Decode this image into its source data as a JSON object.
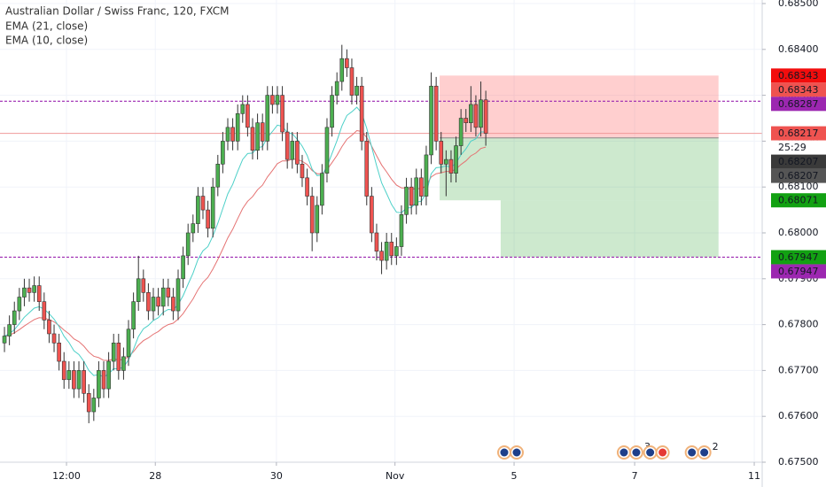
{
  "chart_data": {
    "type": "candlestick",
    "title": "Australian Dollar / Swiss Franc, 120, FXCM",
    "xlim": [
      -0.9,
      152.7
    ],
    "ylim": [
      0.675,
      0.685
    ],
    "yticks": [
      {
        "value": 0.685,
        "label": "0.68500"
      },
      {
        "value": 0.684,
        "label": "0.68400"
      },
      {
        "value": 0.683,
        "label": "0.68300"
      },
      {
        "value": 0.682,
        "label": "0.68200"
      },
      {
        "value": 0.681,
        "label": "0.68100"
      },
      {
        "value": 0.68,
        "label": "0.68000"
      },
      {
        "value": 0.679,
        "label": "0.67900"
      },
      {
        "value": 0.678,
        "label": "0.67800"
      },
      {
        "value": 0.677,
        "label": "0.67700"
      },
      {
        "value": 0.676,
        "label": "0.67600"
      },
      {
        "value": 0.675,
        "label": "0.67500"
      }
    ],
    "xticks": [
      {
        "value": 12.5,
        "label": "12:00"
      },
      {
        "value": 30.4,
        "label": "28"
      },
      {
        "value": 54.8,
        "label": "30"
      },
      {
        "value": 78.7,
        "label": "Nov"
      },
      {
        "value": 102.7,
        "label": "5"
      },
      {
        "value": 127,
        "label": "7"
      },
      {
        "value": 151.1,
        "label": "11"
      }
    ],
    "grid": true,
    "up_color": "#4caf50",
    "down_color": "#ef5350",
    "ohlc": [
      [
        0.6776,
        0.67795,
        0.6774,
        0.67775
      ],
      [
        0.67775,
        0.6782,
        0.67755,
        0.678
      ],
      [
        0.678,
        0.6785,
        0.6778,
        0.6783
      ],
      [
        0.6783,
        0.6788,
        0.6781,
        0.6786
      ],
      [
        0.6786,
        0.679,
        0.6784,
        0.6788
      ],
      [
        0.6788,
        0.679,
        0.6785,
        0.6787
      ],
      [
        0.6787,
        0.67905,
        0.6785,
        0.67885
      ],
      [
        0.67885,
        0.67905,
        0.6783,
        0.6785
      ],
      [
        0.6785,
        0.6787,
        0.6779,
        0.6781
      ],
      [
        0.6781,
        0.6783,
        0.6776,
        0.6778
      ],
      [
        0.6778,
        0.678,
        0.6774,
        0.6776
      ],
      [
        0.6776,
        0.6778,
        0.677,
        0.6772
      ],
      [
        0.6772,
        0.6774,
        0.6766,
        0.6768
      ],
      [
        0.6768,
        0.6772,
        0.6766,
        0.677
      ],
      [
        0.677,
        0.6772,
        0.6764,
        0.6766
      ],
      [
        0.6766,
        0.6772,
        0.6764,
        0.677
      ],
      [
        0.677,
        0.6772,
        0.6763,
        0.6765
      ],
      [
        0.6765,
        0.6767,
        0.67585,
        0.6761
      ],
      [
        0.6761,
        0.6766,
        0.6759,
        0.6764
      ],
      [
        0.6764,
        0.6772,
        0.6762,
        0.677
      ],
      [
        0.677,
        0.6772,
        0.6764,
        0.6766
      ],
      [
        0.6766,
        0.6774,
        0.6764,
        0.6772
      ],
      [
        0.6772,
        0.6778,
        0.677,
        0.6776
      ],
      [
        0.6776,
        0.6778,
        0.6768,
        0.677
      ],
      [
        0.677,
        0.6775,
        0.6768,
        0.6773
      ],
      [
        0.6773,
        0.6781,
        0.6771,
        0.6779
      ],
      [
        0.6779,
        0.6787,
        0.6777,
        0.6785
      ],
      [
        0.6785,
        0.6795,
        0.6783,
        0.679
      ],
      [
        0.679,
        0.6792,
        0.6785,
        0.6787
      ],
      [
        0.6787,
        0.6789,
        0.6781,
        0.6783
      ],
      [
        0.6783,
        0.6788,
        0.6781,
        0.6786
      ],
      [
        0.6786,
        0.6788,
        0.6782,
        0.6784
      ],
      [
        0.6784,
        0.679,
        0.6782,
        0.6788
      ],
      [
        0.6788,
        0.679,
        0.6784,
        0.6786
      ],
      [
        0.6786,
        0.6788,
        0.6781,
        0.6783
      ],
      [
        0.6783,
        0.6792,
        0.6781,
        0.679
      ],
      [
        0.679,
        0.6797,
        0.6788,
        0.6795
      ],
      [
        0.6795,
        0.6802,
        0.6793,
        0.68
      ],
      [
        0.68,
        0.6804,
        0.6798,
        0.6802
      ],
      [
        0.6802,
        0.681,
        0.68,
        0.6808
      ],
      [
        0.6808,
        0.681,
        0.6803,
        0.6805
      ],
      [
        0.6805,
        0.6807,
        0.6799,
        0.6801
      ],
      [
        0.6801,
        0.6812,
        0.6799,
        0.681
      ],
      [
        0.681,
        0.6817,
        0.6808,
        0.6815
      ],
      [
        0.6815,
        0.6822,
        0.6813,
        0.682
      ],
      [
        0.682,
        0.6825,
        0.6818,
        0.6823
      ],
      [
        0.6823,
        0.6825,
        0.6818,
        0.682
      ],
      [
        0.682,
        0.6828,
        0.6818,
        0.6826
      ],
      [
        0.6826,
        0.683,
        0.6824,
        0.6828
      ],
      [
        0.6828,
        0.683,
        0.6821,
        0.6823
      ],
      [
        0.6823,
        0.6825,
        0.6816,
        0.6818
      ],
      [
        0.6818,
        0.6826,
        0.6816,
        0.6824
      ],
      [
        0.6824,
        0.6826,
        0.6818,
        0.682
      ],
      [
        0.682,
        0.6832,
        0.6818,
        0.683
      ],
      [
        0.683,
        0.6832,
        0.6826,
        0.6828
      ],
      [
        0.6828,
        0.6832,
        0.6826,
        0.683
      ],
      [
        0.683,
        0.6832,
        0.682,
        0.6822
      ],
      [
        0.6822,
        0.6824,
        0.6814,
        0.6816
      ],
      [
        0.6816,
        0.6822,
        0.6814,
        0.682
      ],
      [
        0.682,
        0.6822,
        0.6813,
        0.6815
      ],
      [
        0.6815,
        0.6817,
        0.681,
        0.6812
      ],
      [
        0.6812,
        0.6814,
        0.6806,
        0.6808
      ],
      [
        0.6808,
        0.681,
        0.6796,
        0.68
      ],
      [
        0.68,
        0.6808,
        0.6798,
        0.6806
      ],
      [
        0.6806,
        0.6815,
        0.6804,
        0.6813
      ],
      [
        0.6813,
        0.6825,
        0.6811,
        0.6823
      ],
      [
        0.6823,
        0.6832,
        0.6821,
        0.683
      ],
      [
        0.683,
        0.6835,
        0.6828,
        0.6833
      ],
      [
        0.6833,
        0.6841,
        0.6831,
        0.6838
      ],
      [
        0.6838,
        0.684,
        0.6834,
        0.6836
      ],
      [
        0.6836,
        0.6838,
        0.6828,
        0.683
      ],
      [
        0.683,
        0.6834,
        0.6828,
        0.6832
      ],
      [
        0.6832,
        0.6834,
        0.6818,
        0.682
      ],
      [
        0.682,
        0.6822,
        0.6806,
        0.6808
      ],
      [
        0.6808,
        0.681,
        0.6798,
        0.68
      ],
      [
        0.68,
        0.6802,
        0.6794,
        0.6796
      ],
      [
        0.6796,
        0.6798,
        0.6791,
        0.6794
      ],
      [
        0.6794,
        0.68,
        0.6792,
        0.6798
      ],
      [
        0.6798,
        0.68,
        0.6793,
        0.6795
      ],
      [
        0.6795,
        0.6799,
        0.6793,
        0.6797
      ],
      [
        0.6797,
        0.6806,
        0.6795,
        0.6804
      ],
      [
        0.6804,
        0.6812,
        0.6802,
        0.681
      ],
      [
        0.681,
        0.6812,
        0.6804,
        0.6806
      ],
      [
        0.6806,
        0.6814,
        0.6804,
        0.6812
      ],
      [
        0.6812,
        0.6814,
        0.6806,
        0.6808
      ],
      [
        0.6808,
        0.6819,
        0.6806,
        0.6817
      ],
      [
        0.6817,
        0.6835,
        0.6815,
        0.6832
      ],
      [
        0.6832,
        0.6834,
        0.6818,
        0.682
      ],
      [
        0.682,
        0.6822,
        0.6813,
        0.6815
      ],
      [
        0.6815,
        0.6818,
        0.6808,
        0.6816
      ],
      [
        0.6816,
        0.6818,
        0.6811,
        0.6813
      ],
      [
        0.6813,
        0.6821,
        0.6811,
        0.6819
      ],
      [
        0.6819,
        0.6827,
        0.6817,
        0.6825
      ],
      [
        0.6825,
        0.6827,
        0.6822,
        0.6824
      ],
      [
        0.6824,
        0.6832,
        0.6822,
        0.6828
      ],
      [
        0.6828,
        0.683,
        0.6821,
        0.6823
      ],
      [
        0.6823,
        0.6833,
        0.6821,
        0.6829
      ],
      [
        0.6829,
        0.6831,
        0.6819,
        0.68217
      ]
    ],
    "series": [
      {
        "name": "EMA (21, close)",
        "color": "#e57373",
        "values": [
          0.67775,
          0.67777,
          0.67782,
          0.67789,
          0.67797,
          0.67804,
          0.67811,
          0.67815,
          0.67814,
          0.67811,
          0.67806,
          0.67798,
          0.67788,
          0.6778,
          0.67769,
          0.67763,
          0.67753,
          0.6774,
          0.67731,
          0.67728,
          0.67722,
          0.67722,
          0.67725,
          0.67723,
          0.67724,
          0.6773,
          0.67741,
          0.67755,
          0.67765,
          0.67771,
          0.67779,
          0.67785,
          0.67794,
          0.678,
          0.67803,
          0.67812,
          0.67824,
          0.6784,
          0.67856,
          0.67876,
          0.67892,
          0.67903,
          0.67921,
          0.67942,
          0.67965,
          0.67989,
          0.68008,
          0.68031,
          0.68053,
          0.68069,
          0.68079,
          0.68094,
          0.68104,
          0.68122,
          0.68136,
          0.68151,
          0.68157,
          0.68157,
          0.68161,
          0.6816,
          0.68156,
          0.68149,
          0.68136,
          0.68129,
          0.68129,
          0.68138,
          0.68153,
          0.68169,
          0.68188,
          0.68204,
          0.68213,
          0.68223,
          0.68221,
          0.68208,
          0.68189,
          0.68168,
          0.68148,
          0.68133,
          0.68117,
          0.68104,
          0.68098,
          0.68098,
          0.68095,
          0.68097,
          0.68096,
          0.68103,
          0.68122,
          0.68129,
          0.68131,
          0.68134,
          0.68134,
          0.68139,
          0.68149,
          0.68157,
          0.68168,
          0.68174,
          0.68184,
          0.68187
        ]
      },
      {
        "name": "EMA (10, close)",
        "color": "#4dd0c8",
        "values": [
          0.67775,
          0.6778,
          0.67789,
          0.67802,
          0.67816,
          0.67826,
          0.67836,
          0.67839,
          0.67834,
          0.67824,
          0.67812,
          0.67796,
          0.67775,
          0.67761,
          0.67743,
          0.67735,
          0.6772,
          0.677,
          0.67689,
          0.67691,
          0.67686,
          0.67692,
          0.67704,
          0.67703,
          0.67708,
          0.67723,
          0.67746,
          0.67774,
          0.67791,
          0.67798,
          0.67809,
          0.67815,
          0.67827,
          0.67833,
          0.67832,
          0.67844,
          0.67863,
          0.67888,
          0.67912,
          0.67942,
          0.67961,
          0.6797,
          0.67993,
          0.68021,
          0.68053,
          0.68085,
          0.68106,
          0.68134,
          0.6816,
          0.68173,
          0.68174,
          0.68186,
          0.68188,
          0.68208,
          0.68221,
          0.68235,
          0.68232,
          0.68219,
          0.68216,
          0.68204,
          0.68189,
          0.68169,
          0.68139,
          0.68125,
          0.68126,
          0.68145,
          0.68173,
          0.68201,
          0.68233,
          0.68256,
          0.68264,
          0.68274,
          0.68261,
          0.68228,
          0.68187,
          0.68146,
          0.68109,
          0.68086,
          0.68062,
          0.68045,
          0.68044,
          0.68054,
          0.68055,
          0.68067,
          0.68069,
          0.68087,
          0.68129,
          0.68142,
          0.68143,
          0.68146,
          0.68143,
          0.68152,
          0.6817,
          0.68183,
          0.682,
          0.68205,
          0.6822,
          0.6822
        ]
      }
    ],
    "hlines": [
      {
        "value": 0.68287,
        "color": "#9c27b0"
      },
      {
        "value": 0.67947,
        "color": "#9c27b0"
      }
    ],
    "last_price": 0.68217,
    "position": {
      "x_start": 87.7,
      "x_mid": 100,
      "x_end": 143.9,
      "stop": 0.68343,
      "entry": 0.68207,
      "target1": 0.68071,
      "target2": 0.67947
    },
    "badges": [
      {
        "value": 0.68343,
        "color": "#f20d0d"
      },
      {
        "value": 0.68343,
        "color": "#ef5350"
      },
      {
        "value": 0.68287,
        "color": "#9c27b0"
      },
      {
        "value": 0.68217,
        "color": "#ef5350"
      },
      {
        "value": 0.68207,
        "color": "#3a3a3a"
      },
      {
        "value": 0.68207,
        "color": "#555555"
      },
      {
        "value": 0.68071,
        "color": "#12a112"
      },
      {
        "value": 0.67947,
        "color": "#12a112"
      },
      {
        "value": 0.67947,
        "color": "#9c27b0"
      }
    ],
    "countdown": "25:29",
    "events": [
      {
        "x": 101.8
      },
      {
        "x": 125.9,
        "count": 3
      },
      {
        "x": 131.2
      },
      {
        "x": 139.6,
        "count": 2
      }
    ],
    "legend": [
      "EMA (21, close)",
      "EMA (10, close)"
    ]
  }
}
